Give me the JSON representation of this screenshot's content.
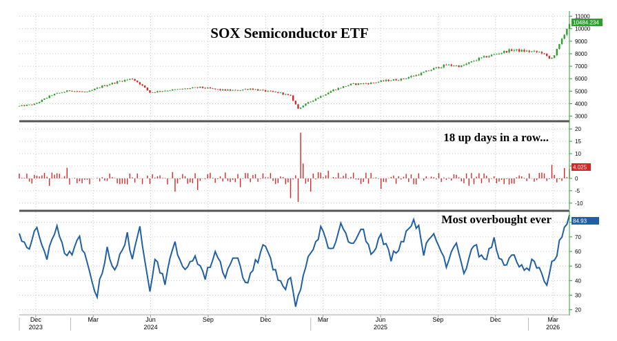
{
  "chart_data": [
    {
      "type": "candlestick",
      "title": "SOX Semiconductor ETF",
      "y_ticks": [
        "3000",
        "4000",
        "5000",
        "6000",
        "7000",
        "8000",
        "9000",
        "10000",
        "11000"
      ],
      "ylim": [
        2700,
        11200
      ],
      "last_value_label": "10484.234",
      "up_color": "#2ca02c",
      "down_color": "#d62728",
      "anchors": [
        [
          0,
          3800
        ],
        [
          6,
          3950
        ],
        [
          13,
          4700
        ],
        [
          20,
          5050
        ],
        [
          27,
          4900
        ],
        [
          33,
          5400
        ],
        [
          40,
          5800
        ],
        [
          45,
          6000
        ],
        [
          48,
          5600
        ],
        [
          52,
          4900
        ],
        [
          58,
          5050
        ],
        [
          64,
          5150
        ],
        [
          72,
          5300
        ],
        [
          80,
          5100
        ],
        [
          86,
          5050
        ],
        [
          92,
          5200
        ],
        [
          98,
          5000
        ],
        [
          104,
          4850
        ],
        [
          108,
          4600
        ],
        [
          111,
          3600
        ],
        [
          113,
          3850
        ],
        [
          118,
          4400
        ],
        [
          125,
          5100
        ],
        [
          132,
          5550
        ],
        [
          140,
          5650
        ],
        [
          146,
          5850
        ],
        [
          152,
          5950
        ],
        [
          159,
          6350
        ],
        [
          165,
          6800
        ],
        [
          170,
          7100
        ],
        [
          176,
          7000
        ],
        [
          183,
          7600
        ],
        [
          190,
          8000
        ],
        [
          196,
          8300
        ],
        [
          202,
          8200
        ],
        [
          208,
          8100
        ],
        [
          211,
          7600
        ],
        [
          213,
          7900
        ],
        [
          216,
          9100
        ],
        [
          219,
          10484
        ]
      ],
      "up_days_label": "18 up days in a row..."
    },
    {
      "type": "bar",
      "y_ticks": [
        "-10",
        "-5",
        "0",
        "5",
        "10",
        "15",
        "20"
      ],
      "ylim": [
        -12,
        22
      ],
      "last_value_label": "4.025",
      "color": "#d62728",
      "note": "Most overbought ever"
    },
    {
      "type": "line",
      "y_ticks": [
        "20",
        "30",
        "40",
        "50",
        "60",
        "70",
        "80"
      ],
      "ylim": [
        17,
        86
      ],
      "last_value_label": "84.93",
      "color": "#1f5fa8",
      "anchors": [
        [
          0,
          72
        ],
        [
          4,
          62
        ],
        [
          7,
          76
        ],
        [
          11,
          55
        ],
        [
          15,
          78
        ],
        [
          19,
          55
        ],
        [
          24,
          68
        ],
        [
          28,
          45
        ],
        [
          31,
          30
        ],
        [
          35,
          63
        ],
        [
          38,
          45
        ],
        [
          43,
          73
        ],
        [
          45,
          52
        ],
        [
          48,
          77
        ],
        [
          52,
          35
        ],
        [
          54,
          55
        ],
        [
          58,
          40
        ],
        [
          62,
          66
        ],
        [
          66,
          45
        ],
        [
          70,
          58
        ],
        [
          74,
          42
        ],
        [
          78,
          60
        ],
        [
          82,
          44
        ],
        [
          86,
          58
        ],
        [
          90,
          38
        ],
        [
          94,
          52
        ],
        [
          98,
          65
        ],
        [
          102,
          45
        ],
        [
          106,
          32
        ],
        [
          108,
          44
        ],
        [
          110,
          22
        ],
        [
          112,
          35
        ],
        [
          115,
          55
        ],
        [
          120,
          75
        ],
        [
          124,
          60
        ],
        [
          128,
          77
        ],
        [
          132,
          64
        ],
        [
          136,
          78
        ],
        [
          140,
          60
        ],
        [
          144,
          70
        ],
        [
          148,
          56
        ],
        [
          152,
          66
        ],
        [
          156,
          80
        ],
        [
          159,
          78
        ],
        [
          161,
          60
        ],
        [
          165,
          72
        ],
        [
          170,
          52
        ],
        [
          174,
          68
        ],
        [
          177,
          45
        ],
        [
          181,
          66
        ],
        [
          185,
          52
        ],
        [
          189,
          68
        ],
        [
          193,
          48
        ],
        [
          197,
          58
        ],
        [
          201,
          45
        ],
        [
          205,
          54
        ],
        [
          208,
          42
        ],
        [
          210,
          34
        ],
        [
          212,
          52
        ],
        [
          214,
          58
        ],
        [
          216,
          72
        ],
        [
          219,
          85
        ]
      ]
    }
  ],
  "x_axis": {
    "months": [
      "Dec",
      "Mar",
      "Jun",
      "Sep",
      "Dec",
      "Mar",
      "Jun",
      "Sep",
      "Dec",
      "Mar"
    ],
    "years": [
      "2023",
      "2024",
      "2025",
      "2026"
    ]
  }
}
